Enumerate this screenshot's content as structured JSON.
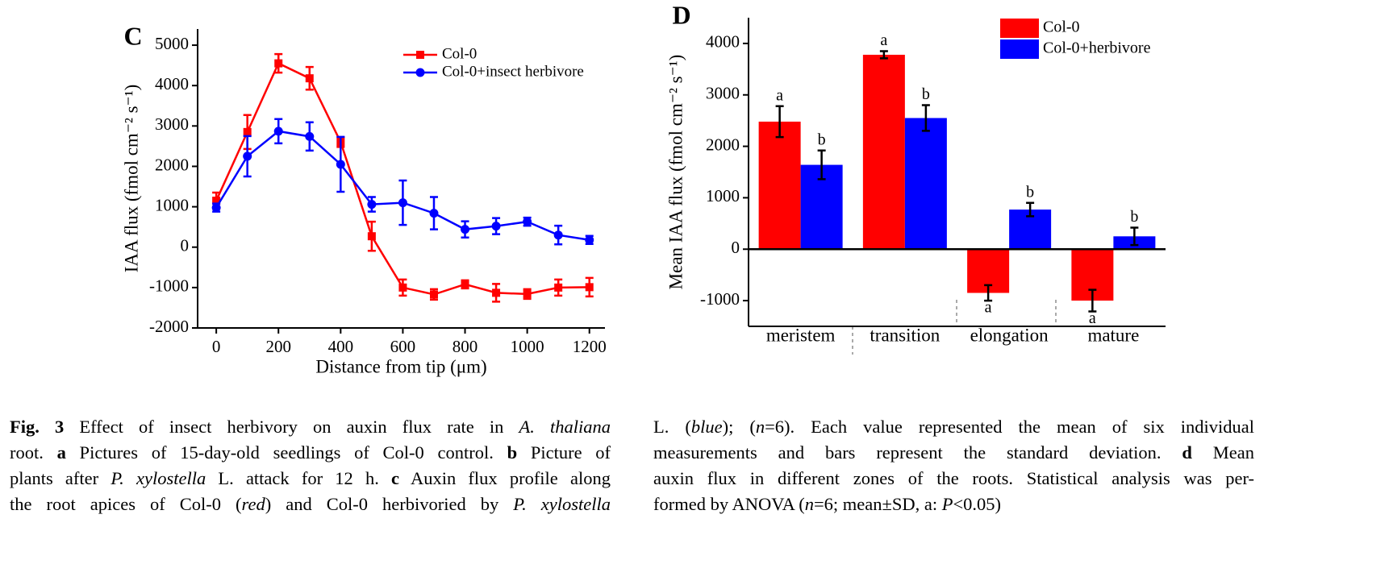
{
  "chart_data": [
    {
      "type": "line",
      "title": "C",
      "x_label": "Distance from tip (μm)",
      "y_label": "IAA flux (fmol cm⁻² s⁻¹)",
      "x": [
        0,
        100,
        200,
        300,
        400,
        500,
        600,
        700,
        800,
        900,
        1000,
        1100,
        1200
      ],
      "series": [
        {
          "name": "Col-0",
          "color": "#ff0000",
          "marker": "square",
          "values": [
            1150,
            2850,
            4550,
            4180,
            2600,
            270,
            -1000,
            -1170,
            -920,
            -1130,
            -1160,
            -1000,
            -990
          ],
          "errors": [
            200,
            420,
            230,
            280,
            120,
            360,
            200,
            130,
            100,
            220,
            120,
            200,
            230
          ]
        },
        {
          "name": "Col-0+insect herbivore",
          "color": "#0000ff",
          "marker": "circle",
          "values": [
            980,
            2250,
            2870,
            2740,
            2050,
            1060,
            1100,
            840,
            440,
            520,
            630,
            300,
            180
          ],
          "errors": [
            100,
            500,
            300,
            350,
            680,
            180,
            550,
            400,
            200,
            200,
            100,
            230,
            100
          ]
        }
      ],
      "xlim": [
        -60,
        1250
      ],
      "xticks": [
        0,
        200,
        400,
        600,
        800,
        1000,
        1200
      ],
      "ylim": [
        -2000,
        5400
      ],
      "yticks": [
        -2000,
        -1000,
        0,
        1000,
        2000,
        3000,
        4000,
        5000
      ]
    },
    {
      "type": "bar",
      "title": "D",
      "y_label": "Mean IAA flux (fmol cm⁻² s⁻¹)",
      "categories": [
        "meristem",
        "transition",
        "elongation",
        "mature"
      ],
      "series": [
        {
          "name": "Col-0",
          "color": "#ff0000",
          "values": [
            2480,
            3780,
            -850,
            -1000
          ],
          "errors": [
            300,
            70,
            150,
            210
          ],
          "letters": [
            "a",
            "a",
            "a",
            "a"
          ]
        },
        {
          "name": "Col-0+herbivore",
          "color": "#0000ff",
          "values": [
            1640,
            2550,
            770,
            250
          ],
          "errors": [
            280,
            250,
            130,
            170
          ],
          "letters": [
            "b",
            "b",
            "b",
            "b"
          ]
        }
      ],
      "ylim": [
        -1500,
        4500
      ],
      "yticks": [
        -1000,
        0,
        1000,
        2000,
        3000,
        4000
      ]
    }
  ],
  "caption": {
    "columns": [
      [
        [
          {
            "text": "Fig. 3",
            "style": "b"
          },
          {
            "text": " Effect of insect herbivory on auxin flux rate in "
          },
          {
            "text": "A. thaliana",
            "style": "i"
          }
        ],
        [
          {
            "text": "root. "
          },
          {
            "text": "a",
            "style": "b"
          },
          {
            "text": " Pictures of 15-day-old seedlings of Col-0 control. "
          },
          {
            "text": "b",
            "style": "b"
          },
          {
            "text": " Picture of"
          }
        ],
        [
          {
            "text": "plants after "
          },
          {
            "text": "P. xylostella",
            "style": "i"
          },
          {
            "text": " L. attack for 12 h. "
          },
          {
            "text": "c",
            "style": "b"
          },
          {
            "text": " Auxin flux profile along"
          }
        ],
        [
          {
            "text": "the root apices of Col-0 ("
          },
          {
            "text": "red",
            "style": "i"
          },
          {
            "text": ") and Col-0 herbivoried by "
          },
          {
            "text": "P. xylostella",
            "style": "i"
          }
        ]
      ],
      [
        [
          {
            "text": "L. ("
          },
          {
            "text": "blue",
            "style": "i"
          },
          {
            "text": "); ("
          },
          {
            "text": "n",
            "style": "i"
          },
          {
            "text": "=6). Each value represented the mean of six individual"
          }
        ],
        [
          {
            "text": "measurements and bars represent the standard deviation. "
          },
          {
            "text": "d",
            "style": "b"
          },
          {
            "text": " Mean"
          }
        ],
        [
          {
            "text": "auxin flux in different zones of the roots. Statistical analysis was per-"
          }
        ],
        [
          {
            "text": "formed by ANOVA ("
          },
          {
            "text": "n",
            "style": "i"
          },
          {
            "text": "=6; mean±SD, a: "
          },
          {
            "text": "P",
            "style": "i"
          },
          {
            "text": "<0.05)"
          }
        ]
      ]
    ]
  }
}
